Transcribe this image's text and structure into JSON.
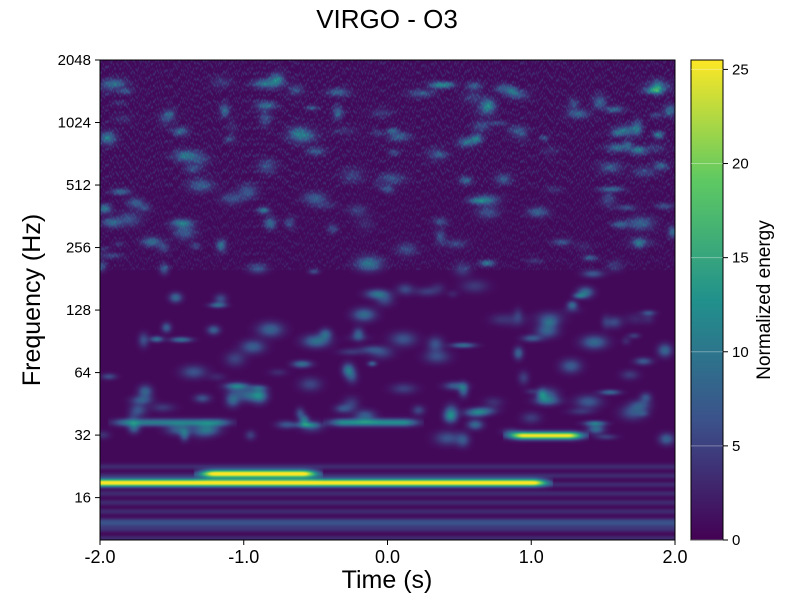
{
  "chart_data": {
    "type": "heatmap",
    "title": "VIRGO - O3",
    "xlabel": "Time (s)",
    "ylabel": "Frequency (Hz)",
    "xlim": [
      -2.0,
      2.0
    ],
    "ylim": [
      10,
      2048
    ],
    "yscale": "log2",
    "x_ticks": [
      "-2.0",
      "-1.0",
      "0.0",
      "1.0",
      "2.0"
    ],
    "y_ticks": [
      "16",
      "32",
      "64",
      "128",
      "256",
      "512",
      "1024",
      "2048"
    ],
    "colorbar": {
      "label": "Normalized energy",
      "range": [
        0,
        25.5
      ],
      "ticks": [
        "0",
        "5",
        "10",
        "15",
        "20",
        "25"
      ],
      "colormap": "viridis",
      "colors": [
        "#440154",
        "#3b528b",
        "#21918c",
        "#5ec962",
        "#fde725"
      ]
    },
    "grid": false,
    "features": [
      {
        "t_start": -2.0,
        "t_end": 1.0,
        "f": 19,
        "energy": 25,
        "note": "bright band"
      },
      {
        "t_start": -1.2,
        "t_end": -0.6,
        "f": 21,
        "energy": 25
      },
      {
        "t_start": 0.95,
        "t_end": 1.25,
        "f": 32,
        "energy": 25
      },
      {
        "t_start": -0.3,
        "t_end": 0.1,
        "f": 37,
        "energy": 12
      },
      {
        "t_start": -1.8,
        "t_end": -1.2,
        "f": 37,
        "energy": 10
      },
      {
        "t_start": -2.0,
        "t_end": 2.0,
        "f": 12,
        "energy": 5
      }
    ]
  }
}
